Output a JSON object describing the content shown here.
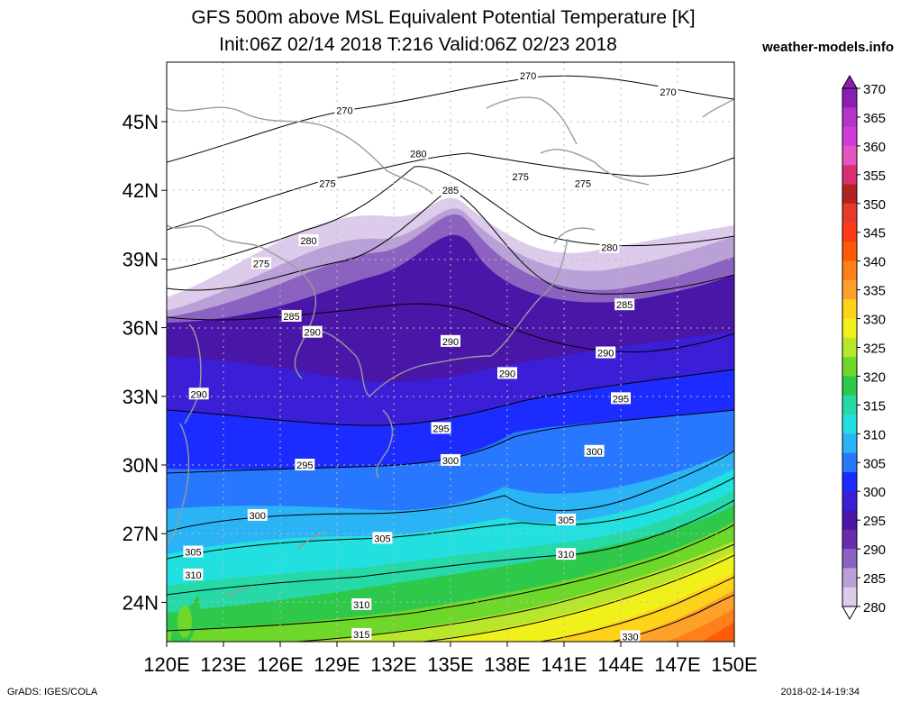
{
  "header": {
    "title_line1": "GFS 500m above MSL Equivalent Potential Temperature [K]",
    "title_line2": "Init:06Z 02/14 2018 T:216 Valid:06Z 02/23 2018",
    "site": "weather-models.info"
  },
  "footer": {
    "left": "GrADS: IGES/COLA",
    "right": "2018-02-14-19:34"
  },
  "map": {
    "lat_labels": [
      "45N",
      "42N",
      "39N",
      "36N",
      "33N",
      "30N",
      "27N",
      "24N"
    ],
    "lon_labels": [
      "120E",
      "123E",
      "126E",
      "129E",
      "132E",
      "135E",
      "138E",
      "141E",
      "144E",
      "147E",
      "150E"
    ],
    "lat_values": [
      45,
      42,
      39,
      36,
      33,
      30,
      27,
      24
    ],
    "lon_values": [
      120,
      123,
      126,
      129,
      132,
      135,
      138,
      141,
      144,
      147,
      150
    ],
    "contour_labels": [
      {
        "text": "270",
        "lon": 139.1,
        "lat": 47.0
      },
      {
        "text": "270",
        "lon": 146.5,
        "lat": 46.3
      },
      {
        "text": "270",
        "lon": 129.4,
        "lat": 45.5
      },
      {
        "text": "280",
        "lon": 133.3,
        "lat": 43.6
      },
      {
        "text": "285",
        "lon": 135.0,
        "lat": 42.0
      },
      {
        "text": "275",
        "lon": 128.5,
        "lat": 42.3
      },
      {
        "text": "275",
        "lon": 138.7,
        "lat": 42.6
      },
      {
        "text": "275",
        "lon": 142.0,
        "lat": 42.3
      },
      {
        "text": "280",
        "lon": 127.5,
        "lat": 39.8
      },
      {
        "text": "275",
        "lon": 125.0,
        "lat": 38.8
      },
      {
        "text": "280",
        "lon": 143.4,
        "lat": 39.5
      },
      {
        "text": "285",
        "lon": 144.2,
        "lat": 37.0
      },
      {
        "text": "285",
        "lon": 126.6,
        "lat": 36.5
      },
      {
        "text": "290",
        "lon": 127.7,
        "lat": 35.8
      },
      {
        "text": "290",
        "lon": 135.0,
        "lat": 35.4
      },
      {
        "text": "290",
        "lon": 138.0,
        "lat": 34.0
      },
      {
        "text": "290",
        "lon": 143.2,
        "lat": 34.9
      },
      {
        "text": "290",
        "lon": 121.7,
        "lat": 33.1
      },
      {
        "text": "295",
        "lon": 144.0,
        "lat": 32.9
      },
      {
        "text": "295",
        "lon": 134.5,
        "lat": 31.6
      },
      {
        "text": "295",
        "lon": 127.3,
        "lat": 30.0
      },
      {
        "text": "300",
        "lon": 135.0,
        "lat": 30.2
      },
      {
        "text": "300",
        "lon": 142.6,
        "lat": 30.6
      },
      {
        "text": "300",
        "lon": 124.8,
        "lat": 27.8
      },
      {
        "text": "305",
        "lon": 141.1,
        "lat": 27.6
      },
      {
        "text": "305",
        "lon": 131.4,
        "lat": 26.8
      },
      {
        "text": "305",
        "lon": 121.4,
        "lat": 26.2
      },
      {
        "text": "310",
        "lon": 141.1,
        "lat": 26.1
      },
      {
        "text": "310",
        "lon": 121.4,
        "lat": 25.2
      },
      {
        "text": "310",
        "lon": 130.3,
        "lat": 23.9
      },
      {
        "text": "315",
        "lon": 130.3,
        "lat": 22.6
      },
      {
        "text": "330",
        "lon": 144.5,
        "lat": 22.5
      }
    ]
  },
  "colorbar": {
    "levels": [
      "370",
      "365",
      "360",
      "355",
      "350",
      "345",
      "340",
      "335",
      "330",
      "325",
      "320",
      "315",
      "310",
      "305",
      "300",
      "295",
      "290",
      "285",
      "280"
    ],
    "colors": [
      "#8b1fb5",
      "#b433c9",
      "#d13adb",
      "#e455c1",
      "#d92f6e",
      "#b22222",
      "#e53a2a",
      "#ff3a1a",
      "#ff5a0a",
      "#ff7f1a",
      "#ffa028",
      "#ffd21a",
      "#f0f01a",
      "#b8e62a",
      "#6ed82a",
      "#2ec84a",
      "#27d9a6",
      "#22e0e0",
      "#2ab4f5",
      "#2878ff",
      "#1c2cff",
      "#3a1fd6",
      "#4a16a8",
      "#6a2caa",
      "#8c62c0",
      "#b9a0d7",
      "#dccbea"
    ]
  },
  "colors": {
    "land_outline": "#9a9a9a",
    "contour": "#000000",
    "grid": "#cccccc"
  }
}
